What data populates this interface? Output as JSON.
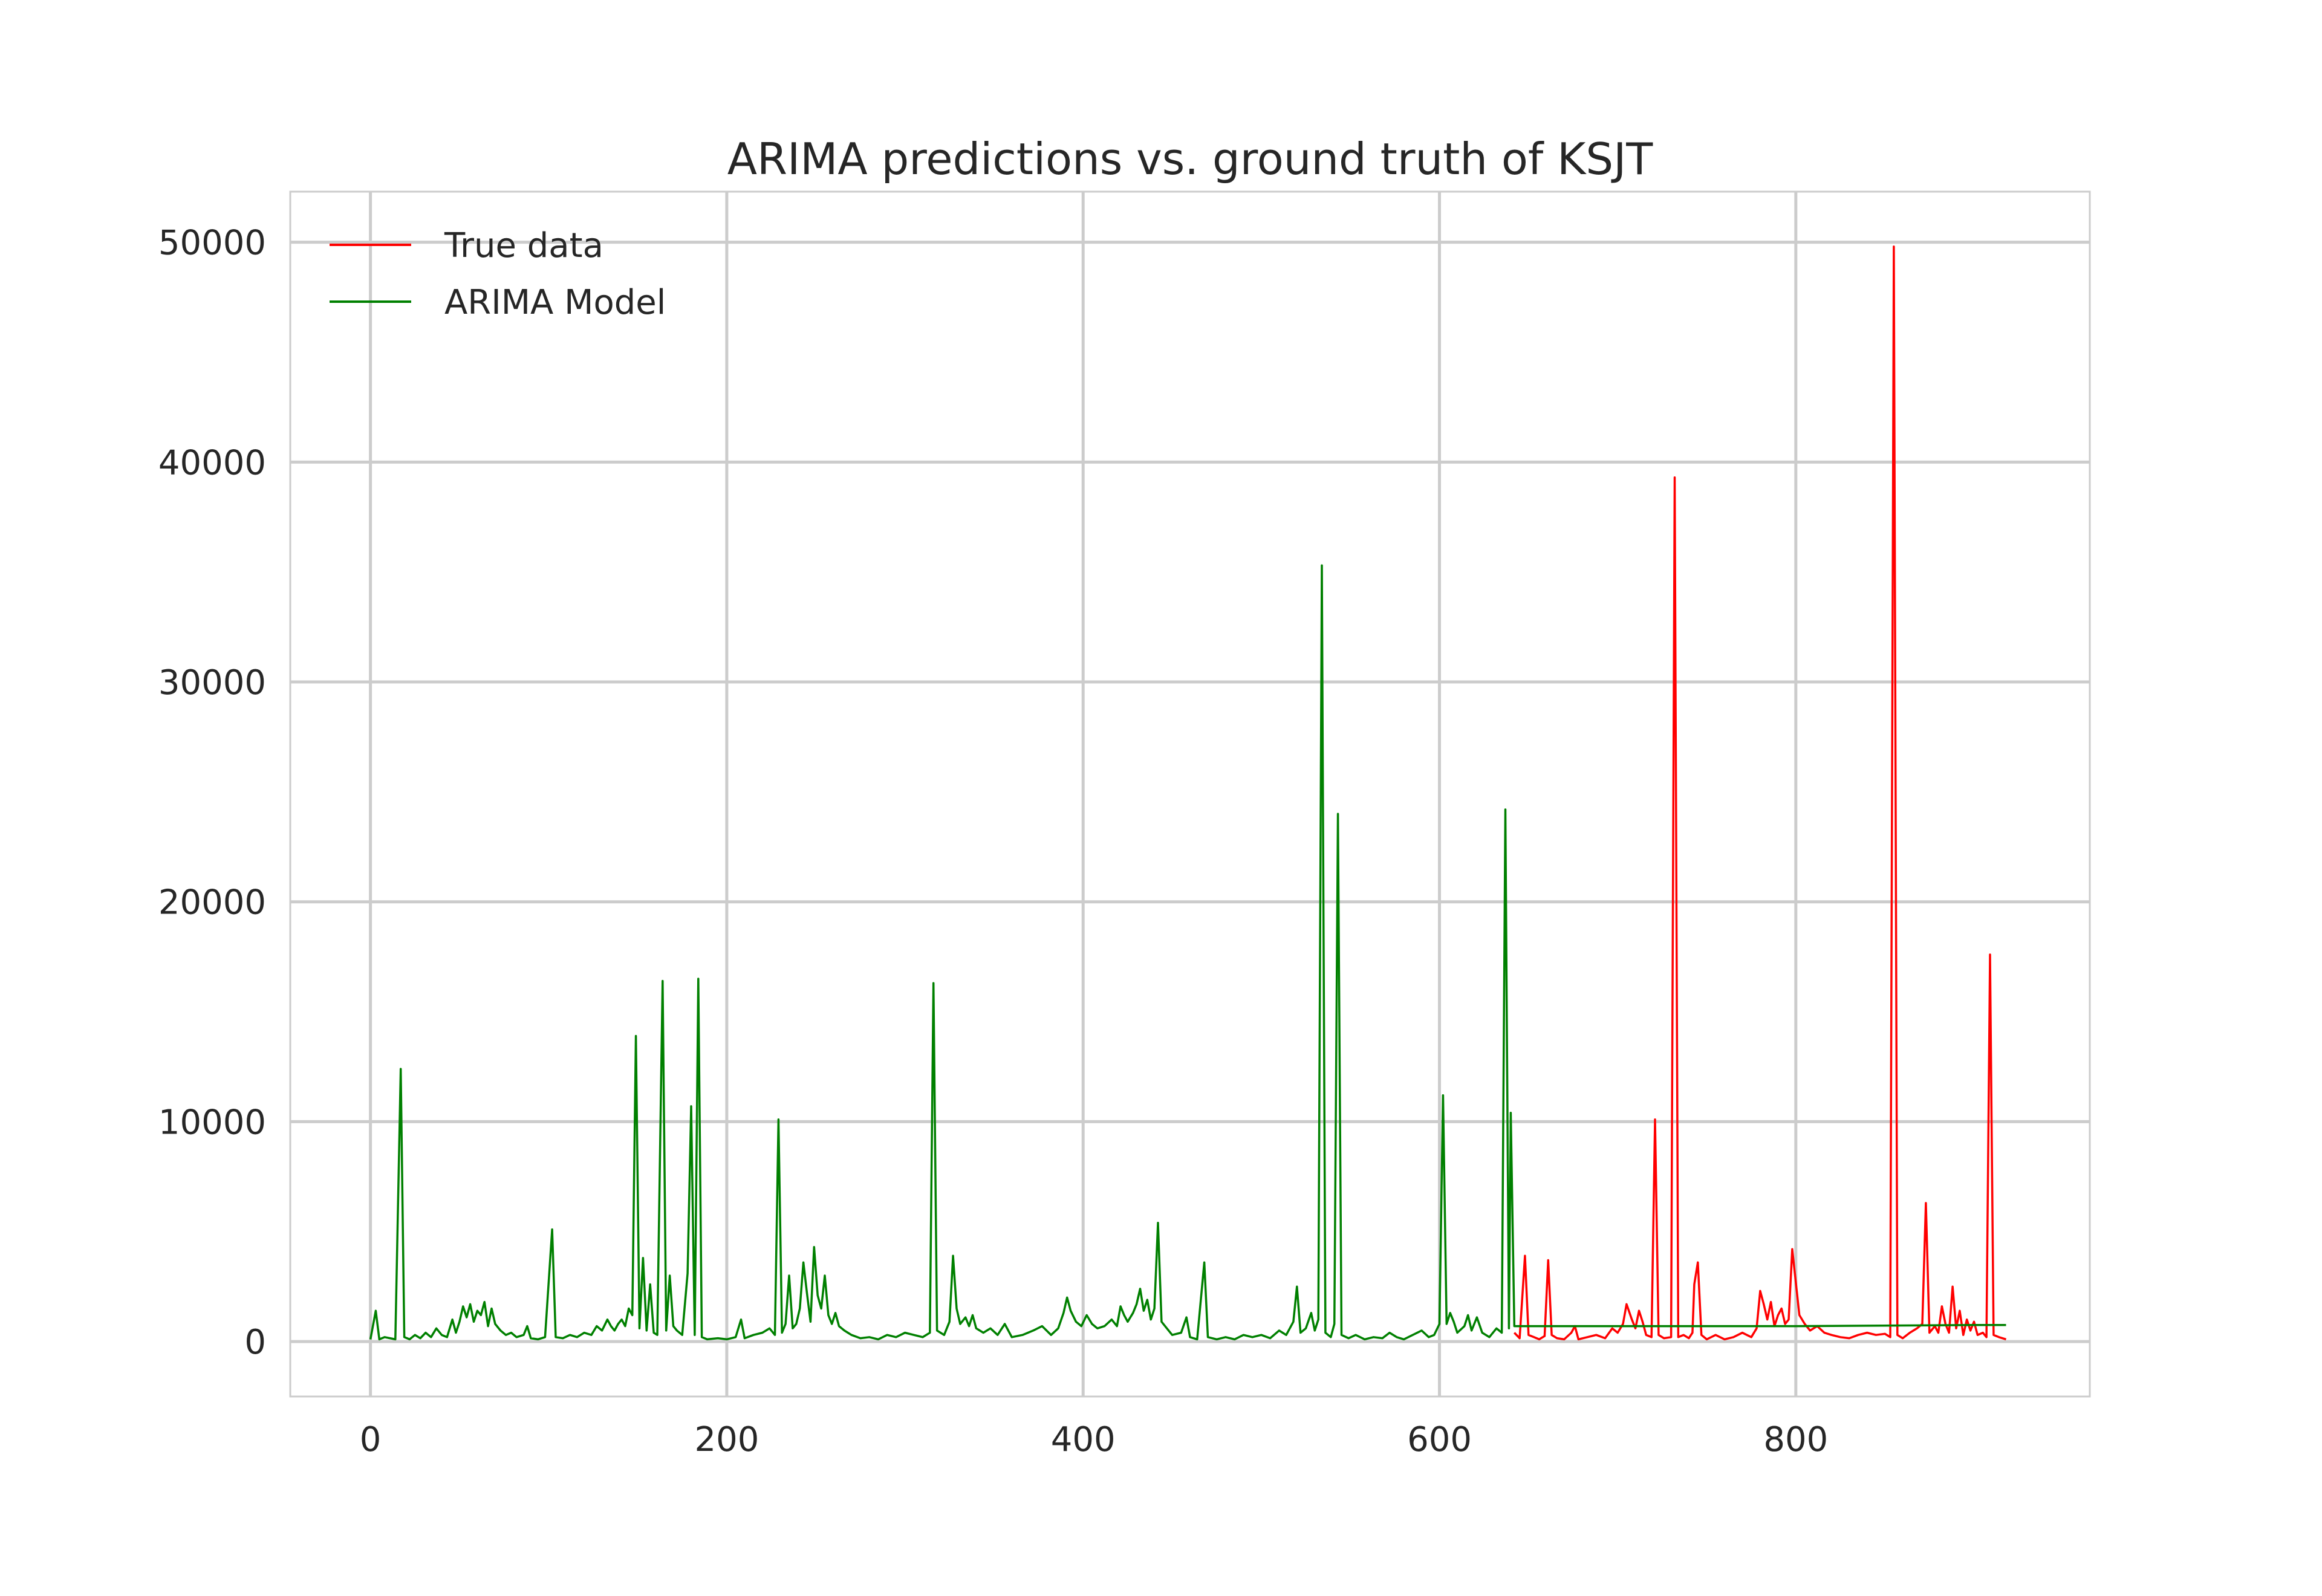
{
  "chart_data": {
    "type": "line",
    "title": "ARIMA predictions vs. ground truth of KSJT",
    "xlabel": "",
    "ylabel": "",
    "xlim": [
      -45,
      965
    ],
    "ylim": [
      -2500,
      52300
    ],
    "xticks": [
      0,
      200,
      400,
      600,
      800
    ],
    "yticks": [
      0,
      10000,
      20000,
      30000,
      40000,
      50000
    ],
    "xtick_labels": [
      "0",
      "200",
      "400",
      "600",
      "800"
    ],
    "ytick_labels": [
      "0",
      "10000",
      "20000",
      "30000",
      "40000",
      "50000"
    ],
    "grid": true,
    "legend_position": "top-left",
    "series": [
      {
        "name": "True data",
        "color": "#ff0000",
        "points": [
          [
            642,
            400
          ],
          [
            645,
            150
          ],
          [
            648,
            3900
          ],
          [
            650,
            300
          ],
          [
            653,
            200
          ],
          [
            656,
            100
          ],
          [
            659,
            250
          ],
          [
            661,
            3700
          ],
          [
            663,
            300
          ],
          [
            666,
            150
          ],
          [
            670,
            100
          ],
          [
            674,
            400
          ],
          [
            676,
            700
          ],
          [
            678,
            100
          ],
          [
            683,
            200
          ],
          [
            688,
            300
          ],
          [
            693,
            150
          ],
          [
            697,
            600
          ],
          [
            700,
            400
          ],
          [
            703,
            800
          ],
          [
            705,
            1700
          ],
          [
            708,
            1000
          ],
          [
            710,
            600
          ],
          [
            712,
            1400
          ],
          [
            714,
            900
          ],
          [
            716,
            300
          ],
          [
            719,
            200
          ],
          [
            721,
            10100
          ],
          [
            723,
            300
          ],
          [
            726,
            150
          ],
          [
            730,
            200
          ],
          [
            732,
            39300
          ],
          [
            734,
            200
          ],
          [
            737,
            300
          ],
          [
            740,
            150
          ],
          [
            742,
            400
          ],
          [
            743,
            2600
          ],
          [
            745,
            3600
          ],
          [
            747,
            300
          ],
          [
            750,
            100
          ],
          [
            755,
            300
          ],
          [
            760,
            100
          ],
          [
            765,
            200
          ],
          [
            770,
            400
          ],
          [
            775,
            200
          ],
          [
            778,
            600
          ],
          [
            780,
            2300
          ],
          [
            782,
            1700
          ],
          [
            784,
            1000
          ],
          [
            786,
            1800
          ],
          [
            788,
            700
          ],
          [
            790,
            1200
          ],
          [
            792,
            1500
          ],
          [
            794,
            800
          ],
          [
            796,
            1000
          ],
          [
            798,
            4200
          ],
          [
            800,
            2700
          ],
          [
            802,
            1200
          ],
          [
            805,
            800
          ],
          [
            808,
            500
          ],
          [
            812,
            700
          ],
          [
            816,
            400
          ],
          [
            820,
            300
          ],
          [
            825,
            200
          ],
          [
            830,
            150
          ],
          [
            835,
            300
          ],
          [
            840,
            400
          ],
          [
            845,
            300
          ],
          [
            850,
            350
          ],
          [
            853,
            200
          ],
          [
            855,
            49800
          ],
          [
            857,
            300
          ],
          [
            860,
            150
          ],
          [
            864,
            400
          ],
          [
            868,
            600
          ],
          [
            871,
            800
          ],
          [
            873,
            6300
          ],
          [
            875,
            400
          ],
          [
            878,
            700
          ],
          [
            880,
            400
          ],
          [
            882,
            1600
          ],
          [
            884,
            800
          ],
          [
            886,
            400
          ],
          [
            888,
            2500
          ],
          [
            890,
            600
          ],
          [
            892,
            1400
          ],
          [
            894,
            300
          ],
          [
            896,
            1000
          ],
          [
            898,
            500
          ],
          [
            900,
            900
          ],
          [
            902,
            300
          ],
          [
            905,
            400
          ],
          [
            907,
            200
          ],
          [
            909,
            17600
          ],
          [
            911,
            300
          ],
          [
            914,
            200
          ],
          [
            918,
            100
          ]
        ]
      },
      {
        "name": "ARIMA Model",
        "color": "#008000",
        "points": [
          [
            0,
            100
          ],
          [
            3,
            1400
          ],
          [
            5,
            100
          ],
          [
            8,
            200
          ],
          [
            11,
            150
          ],
          [
            14,
            100
          ],
          [
            17,
            12400
          ],
          [
            19,
            200
          ],
          [
            22,
            100
          ],
          [
            25,
            300
          ],
          [
            28,
            150
          ],
          [
            31,
            400
          ],
          [
            34,
            200
          ],
          [
            37,
            600
          ],
          [
            40,
            300
          ],
          [
            43,
            200
          ],
          [
            46,
            1000
          ],
          [
            48,
            400
          ],
          [
            50,
            900
          ],
          [
            52,
            1600
          ],
          [
            54,
            1100
          ],
          [
            56,
            1700
          ],
          [
            58,
            900
          ],
          [
            60,
            1400
          ],
          [
            62,
            1200
          ],
          [
            64,
            1800
          ],
          [
            66,
            700
          ],
          [
            68,
            1500
          ],
          [
            70,
            800
          ],
          [
            73,
            500
          ],
          [
            76,
            300
          ],
          [
            79,
            400
          ],
          [
            82,
            200
          ],
          [
            86,
            300
          ],
          [
            88,
            700
          ],
          [
            90,
            150
          ],
          [
            94,
            100
          ],
          [
            98,
            200
          ],
          [
            102,
            5100
          ],
          [
            104,
            200
          ],
          [
            108,
            150
          ],
          [
            112,
            300
          ],
          [
            116,
            200
          ],
          [
            120,
            400
          ],
          [
            124,
            300
          ],
          [
            127,
            700
          ],
          [
            130,
            500
          ],
          [
            133,
            1000
          ],
          [
            135,
            700
          ],
          [
            137,
            500
          ],
          [
            139,
            800
          ],
          [
            141,
            1000
          ],
          [
            143,
            700
          ],
          [
            145,
            1500
          ],
          [
            147,
            1200
          ],
          [
            149,
            13900
          ],
          [
            151,
            600
          ],
          [
            153,
            3800
          ],
          [
            155,
            500
          ],
          [
            157,
            2600
          ],
          [
            159,
            400
          ],
          [
            161,
            300
          ],
          [
            164,
            16400
          ],
          [
            166,
            500
          ],
          [
            168,
            3000
          ],
          [
            170,
            700
          ],
          [
            172,
            500
          ],
          [
            175,
            300
          ],
          [
            178,
            3100
          ],
          [
            180,
            10700
          ],
          [
            182,
            300
          ],
          [
            184,
            16500
          ],
          [
            186,
            200
          ],
          [
            189,
            100
          ],
          [
            195,
            150
          ],
          [
            200,
            100
          ],
          [
            205,
            200
          ],
          [
            208,
            1000
          ],
          [
            210,
            150
          ],
          [
            215,
            300
          ],
          [
            220,
            400
          ],
          [
            224,
            600
          ],
          [
            227,
            300
          ],
          [
            229,
            10100
          ],
          [
            231,
            400
          ],
          [
            233,
            800
          ],
          [
            235,
            3000
          ],
          [
            237,
            600
          ],
          [
            239,
            800
          ],
          [
            241,
            1500
          ],
          [
            243,
            3600
          ],
          [
            245,
            2200
          ],
          [
            247,
            900
          ],
          [
            249,
            4300
          ],
          [
            251,
            2100
          ],
          [
            253,
            1500
          ],
          [
            255,
            3000
          ],
          [
            257,
            1200
          ],
          [
            259,
            800
          ],
          [
            261,
            1300
          ],
          [
            263,
            700
          ],
          [
            266,
            500
          ],
          [
            270,
            300
          ],
          [
            275,
            150
          ],
          [
            280,
            200
          ],
          [
            285,
            100
          ],
          [
            290,
            300
          ],
          [
            295,
            200
          ],
          [
            300,
            400
          ],
          [
            305,
            300
          ],
          [
            310,
            200
          ],
          [
            314,
            400
          ],
          [
            316,
            16300
          ],
          [
            318,
            500
          ],
          [
            322,
            300
          ],
          [
            325,
            900
          ],
          [
            327,
            3900
          ],
          [
            329,
            1500
          ],
          [
            331,
            800
          ],
          [
            334,
            1100
          ],
          [
            336,
            700
          ],
          [
            338,
            1200
          ],
          [
            340,
            600
          ],
          [
            344,
            400
          ],
          [
            348,
            600
          ],
          [
            352,
            300
          ],
          [
            356,
            800
          ],
          [
            360,
            200
          ],
          [
            366,
            300
          ],
          [
            372,
            500
          ],
          [
            377,
            700
          ],
          [
            382,
            300
          ],
          [
            386,
            600
          ],
          [
            389,
            1300
          ],
          [
            391,
            2000
          ],
          [
            393,
            1400
          ],
          [
            396,
            900
          ],
          [
            399,
            700
          ],
          [
            402,
            1200
          ],
          [
            405,
            800
          ],
          [
            408,
            600
          ],
          [
            412,
            700
          ],
          [
            416,
            1000
          ],
          [
            419,
            700
          ],
          [
            421,
            1600
          ],
          [
            423,
            1200
          ],
          [
            425,
            900
          ],
          [
            428,
            1300
          ],
          [
            430,
            1700
          ],
          [
            432,
            2400
          ],
          [
            434,
            1400
          ],
          [
            436,
            1900
          ],
          [
            438,
            1000
          ],
          [
            440,
            1500
          ],
          [
            442,
            5400
          ],
          [
            444,
            900
          ],
          [
            447,
            600
          ],
          [
            450,
            300
          ],
          [
            455,
            400
          ],
          [
            458,
            1100
          ],
          [
            460,
            200
          ],
          [
            464,
            100
          ],
          [
            468,
            3600
          ],
          [
            470,
            200
          ],
          [
            475,
            100
          ],
          [
            480,
            200
          ],
          [
            485,
            100
          ],
          [
            490,
            300
          ],
          [
            495,
            200
          ],
          [
            500,
            300
          ],
          [
            505,
            150
          ],
          [
            510,
            500
          ],
          [
            514,
            300
          ],
          [
            518,
            900
          ],
          [
            520,
            2500
          ],
          [
            522,
            400
          ],
          [
            525,
            600
          ],
          [
            528,
            1300
          ],
          [
            530,
            500
          ],
          [
            532,
            1000
          ],
          [
            534,
            35300
          ],
          [
            536,
            400
          ],
          [
            539,
            200
          ],
          [
            541,
            800
          ],
          [
            543,
            24000
          ],
          [
            545,
            300
          ],
          [
            549,
            150
          ],
          [
            553,
            300
          ],
          [
            558,
            100
          ],
          [
            563,
            200
          ],
          [
            568,
            150
          ],
          [
            572,
            400
          ],
          [
            576,
            200
          ],
          [
            580,
            100
          ],
          [
            585,
            300
          ],
          [
            590,
            500
          ],
          [
            594,
            200
          ],
          [
            597,
            300
          ],
          [
            600,
            800
          ],
          [
            602,
            11200
          ],
          [
            604,
            800
          ],
          [
            606,
            1300
          ],
          [
            608,
            900
          ],
          [
            610,
            400
          ],
          [
            614,
            700
          ],
          [
            616,
            1200
          ],
          [
            618,
            500
          ],
          [
            621,
            1100
          ],
          [
            624,
            400
          ],
          [
            628,
            200
          ],
          [
            632,
            600
          ],
          [
            635,
            400
          ],
          [
            637,
            24200
          ],
          [
            639,
            600
          ],
          [
            640,
            10400
          ],
          [
            642,
            700
          ],
          [
            700,
            700
          ],
          [
            800,
            700
          ],
          [
            900,
            750
          ],
          [
            918,
            750
          ]
        ]
      }
    ]
  }
}
